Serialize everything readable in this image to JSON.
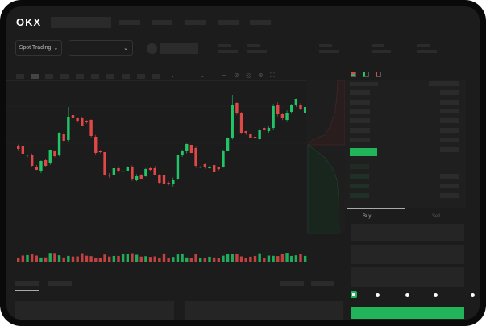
{
  "header": {
    "logo": "OKX"
  },
  "market": {
    "mode_select": "Spot Trading",
    "pair_select": ""
  },
  "order_form": {
    "tabs": [
      "Buy",
      "Sell"
    ],
    "active_tab": "Buy",
    "slider_percent": 0,
    "slider_stops": [
      0,
      25,
      50,
      75,
      100
    ],
    "submit_color": "#22b45a"
  },
  "colors": {
    "up": "#22c467",
    "down": "#e04848",
    "background": "#1c1c1c"
  },
  "chart_data": {
    "type": "candlestick",
    "series": [
      [
        69,
        65
      ],
      [
        68,
        59
      ],
      [
        57,
        58
      ],
      [
        58,
        44
      ],
      [
        43,
        39
      ],
      [
        37,
        50
      ],
      [
        51,
        44
      ],
      [
        48,
        64
      ],
      [
        63,
        56
      ],
      [
        57,
        85
      ],
      [
        84,
        75
      ],
      [
        76,
        105
      ],
      [
        107,
        103
      ],
      [
        104,
        100
      ],
      [
        104,
        94
      ],
      [
        100,
        99
      ],
      [
        101,
        81
      ],
      [
        80,
        60
      ],
      [
        63,
        61
      ],
      [
        61,
        33
      ],
      [
        33,
        32
      ],
      [
        32,
        41
      ],
      [
        41,
        37
      ],
      [
        37,
        38
      ],
      [
        38,
        43
      ],
      [
        42,
        28
      ],
      [
        27,
        31
      ],
      [
        32,
        28
      ],
      [
        31,
        40
      ],
      [
        41,
        39
      ],
      [
        41,
        32
      ],
      [
        32,
        23
      ],
      [
        32,
        22
      ],
      [
        23,
        21
      ],
      [
        21,
        27
      ],
      [
        28,
        57
      ],
      [
        57,
        62
      ],
      [
        62,
        71
      ],
      [
        70,
        60
      ],
      [
        66,
        44
      ],
      [
        43,
        43
      ],
      [
        46,
        42
      ],
      [
        41,
        43
      ],
      [
        45,
        36
      ],
      [
        42,
        40
      ],
      [
        42,
        63
      ],
      [
        63,
        78
      ],
      [
        78,
        120
      ],
      [
        122,
        110
      ],
      [
        109,
        85
      ],
      [
        87,
        85
      ],
      [
        84,
        79
      ],
      [
        80,
        79
      ],
      [
        77,
        89
      ],
      [
        91,
        88
      ],
      [
        87,
        91
      ],
      [
        91,
        118
      ],
      [
        120,
        108
      ],
      [
        108,
        103
      ],
      [
        101,
        110
      ],
      [
        111,
        119
      ],
      [
        120,
        127
      ],
      [
        120,
        114
      ],
      [
        110,
        117
      ]
    ],
    "value_order": "open,close"
  }
}
